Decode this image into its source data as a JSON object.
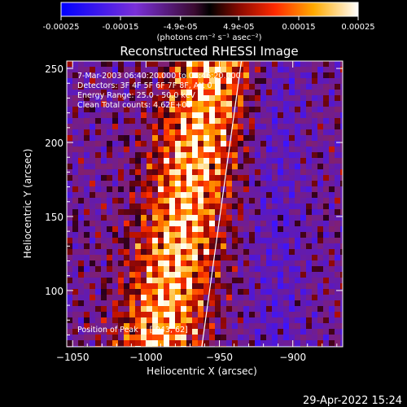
{
  "colorbar": {
    "tick_labels": [
      "-0.00025",
      "-0.00015",
      "-4.9e-05",
      "4.9e-05",
      "0.00015",
      "0.00025"
    ],
    "tick_values": [
      -0.00025,
      -0.00015,
      -4.9e-05,
      4.9e-05,
      0.00015,
      0.00025
    ],
    "range": [
      -0.00025,
      0.00025
    ],
    "unit_label": "(photons cm⁻² s⁻¹ asec⁻²)"
  },
  "title": "Reconstructed RHESSI Image",
  "info_lines": [
    "7-Mar-2003 06:40:20.000 to 06:46:20.000",
    "Detectors: 3F 4F 5F 6F 7F 8F, Att 0",
    "Energy Range: 25.0 - 50.0 keV",
    "Clean     Total counts: 4.62E+03"
  ],
  "peak_text": "Position of Peak = [-943, 62]",
  "x_axis": {
    "label": "Heliocentric X (arcsec)",
    "tick_labels": [
      "−1050",
      "−1000",
      "−950",
      "−900"
    ],
    "tick_values": [
      -1050,
      -1000,
      -950,
      -900
    ],
    "range": [
      -1054,
      -866
    ]
  },
  "y_axis": {
    "label": "Heliocentric Y (arcsec)",
    "tick_labels": [
      "100",
      "150",
      "200",
      "250"
    ],
    "tick_values": [
      100,
      150,
      200,
      250
    ],
    "range": [
      62,
      255
    ]
  },
  "limb_line": {
    "x": [
      -962,
      -935
    ],
    "y": [
      62,
      255
    ]
  },
  "timestamp": "29-Apr-2022 15:24"
}
